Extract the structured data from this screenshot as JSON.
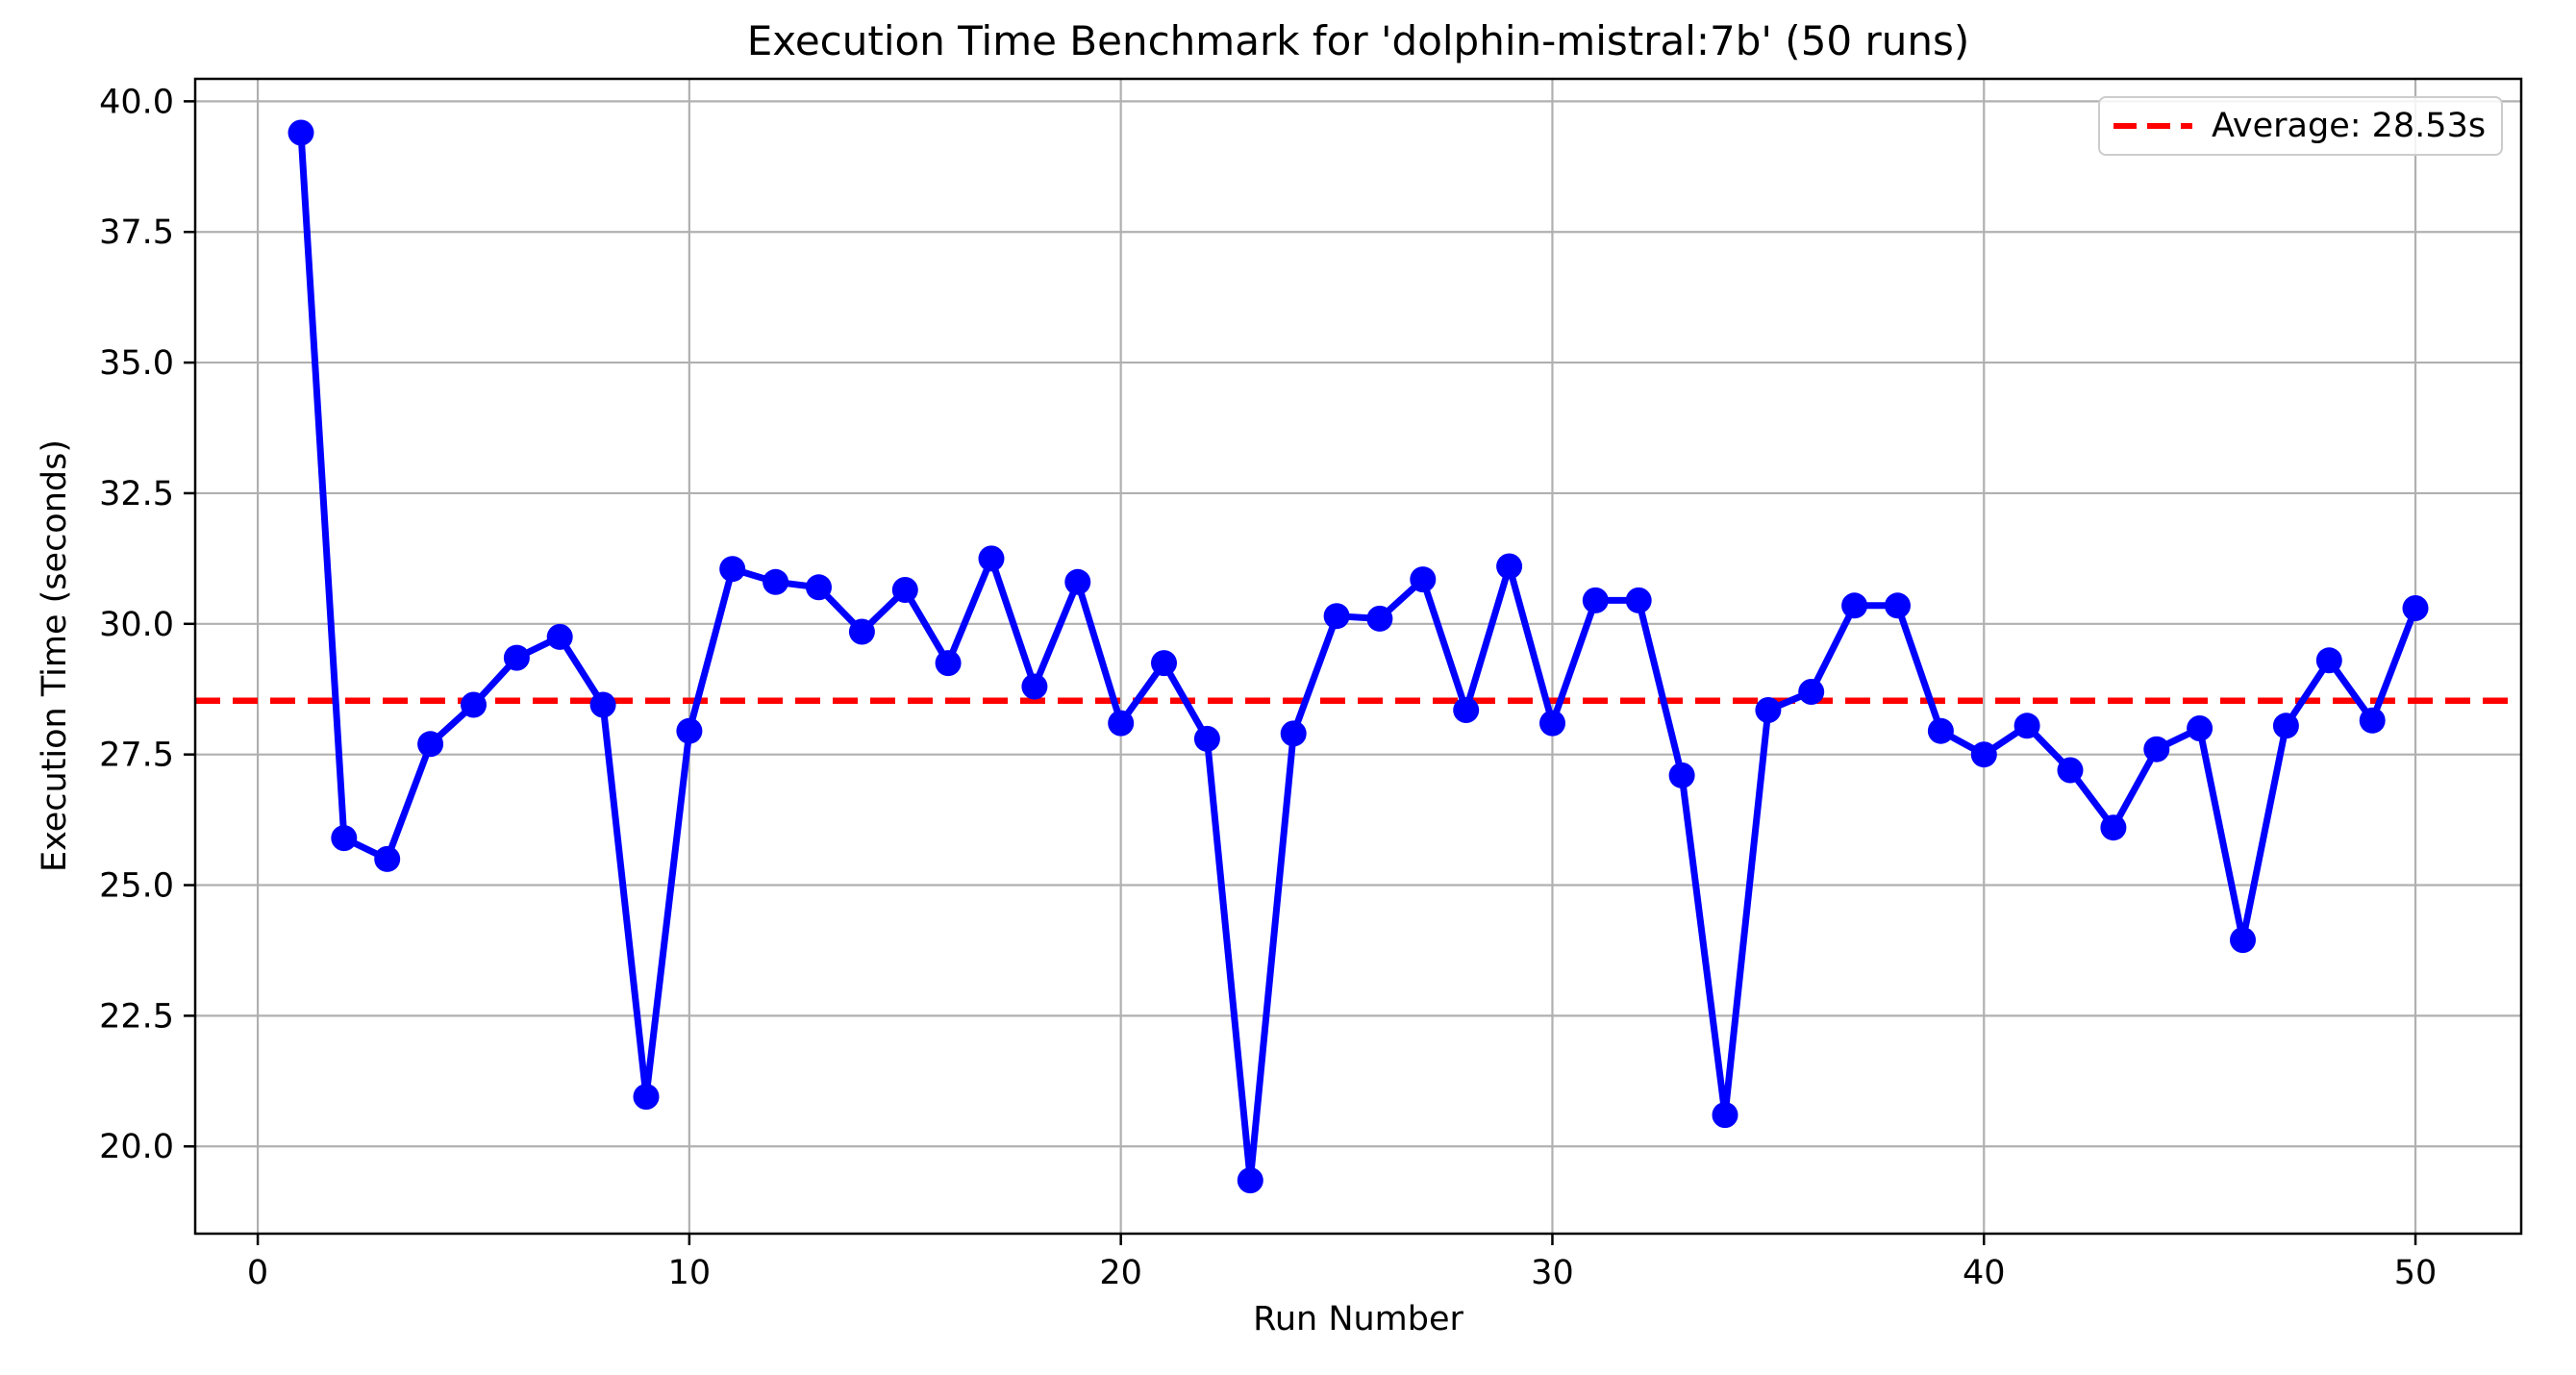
{
  "chart_data": {
    "type": "line",
    "title": "Execution Time Benchmark for 'dolphin-mistral:7b' (50 runs)",
    "xlabel": "Run Number",
    "ylabel": "Execution Time (seconds)",
    "x": [
      1,
      2,
      3,
      4,
      5,
      6,
      7,
      8,
      9,
      10,
      11,
      12,
      13,
      14,
      15,
      16,
      17,
      18,
      19,
      20,
      21,
      22,
      23,
      24,
      25,
      26,
      27,
      28,
      29,
      30,
      31,
      32,
      33,
      34,
      35,
      36,
      37,
      38,
      39,
      40,
      41,
      42,
      43,
      44,
      45,
      46,
      47,
      48,
      49,
      50
    ],
    "y": [
      39.4,
      25.9,
      25.5,
      27.7,
      28.45,
      29.35,
      29.75,
      28.45,
      20.95,
      27.95,
      31.05,
      30.8,
      30.7,
      29.85,
      30.65,
      29.25,
      31.25,
      28.8,
      30.8,
      28.1,
      29.25,
      27.8,
      19.35,
      27.9,
      30.15,
      30.1,
      30.85,
      28.35,
      31.1,
      28.1,
      30.45,
      30.45,
      27.1,
      20.6,
      28.35,
      28.7,
      30.35,
      30.35,
      27.95,
      27.5,
      28.05,
      27.2,
      26.1,
      27.6,
      28.0,
      23.95,
      28.05,
      29.3,
      28.15,
      30.3
    ],
    "average": 28.53,
    "average_label": "Average: 28.53s",
    "xlim": [
      -1.45,
      52.45
    ],
    "ylim": [
      18.33,
      40.43
    ],
    "xticks": [
      0,
      10,
      20,
      30,
      40,
      50
    ],
    "xtick_labels": [
      "0",
      "10",
      "20",
      "30",
      "40",
      "50"
    ],
    "yticks": [
      20.0,
      22.5,
      25.0,
      27.5,
      30.0,
      32.5,
      35.0,
      37.5,
      40.0
    ],
    "ytick_labels": [
      "20.0",
      "22.5",
      "25.0",
      "27.5",
      "30.0",
      "32.5",
      "35.0",
      "37.5",
      "40.0"
    ],
    "grid": true,
    "legend_position": "upper right",
    "marker": "circle",
    "colors": {
      "series_line": "#0000ff",
      "average_line": "#ff0000",
      "grid": "#b0b0b0",
      "spine": "#000000",
      "legend_border": "#cccccc",
      "background": "#ffffff"
    }
  }
}
